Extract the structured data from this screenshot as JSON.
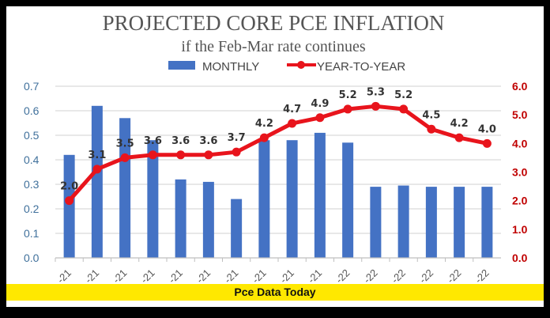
{
  "chart_data": {
    "type": "bar+line",
    "title": "PROJECTED CORE PCE INFLATION",
    "subtitle": "if the Feb-Mar rate continues",
    "legend_position": "top",
    "grid": true,
    "categories": [
      "-21",
      "-21",
      "-21",
      "-21",
      "-21",
      "-21",
      "-21",
      "-21",
      "-21",
      "-21",
      "-22",
      "-22",
      "-22",
      "-22",
      "-22",
      "-22"
    ],
    "series": [
      {
        "name": "MONTHLY",
        "type": "bar",
        "axis": "left",
        "color": "#4472c4",
        "values": [
          0.42,
          0.62,
          0.57,
          0.48,
          0.32,
          0.31,
          0.24,
          0.48,
          0.48,
          0.51,
          0.47,
          0.29,
          0.295,
          0.29,
          0.29,
          0.29
        ]
      },
      {
        "name": "YEAR-TO-YEAR",
        "type": "line",
        "axis": "right",
        "color": "#e8141c",
        "values": [
          2.0,
          3.1,
          3.5,
          3.6,
          3.6,
          3.6,
          3.7,
          4.2,
          4.7,
          4.9,
          5.2,
          5.3,
          5.2,
          4.5,
          4.2,
          4.0
        ],
        "labels": [
          "2.0",
          "3.1",
          "3.5",
          "3.6",
          "3.6",
          "3.6",
          "3.7",
          "4.2",
          "4.7",
          "4.9",
          "5.2",
          "5.3",
          "5.2",
          "4.5",
          "4.2",
          "4.0"
        ]
      }
    ],
    "y_left": {
      "range": [
        0,
        0.7
      ],
      "ticks": [
        "0.0",
        "0.1",
        "0.2",
        "0.3",
        "0.4",
        "0.5",
        "0.6",
        "0.7"
      ],
      "color": "#41719c"
    },
    "y_right": {
      "range": [
        0,
        6.0
      ],
      "ticks": [
        "0.0",
        "1.0",
        "2.0",
        "3.0",
        "4.0",
        "5.0",
        "6.0"
      ],
      "color": "#c00000"
    }
  },
  "banner": {
    "text": "Pce Data Today",
    "color": "#ffe800"
  }
}
